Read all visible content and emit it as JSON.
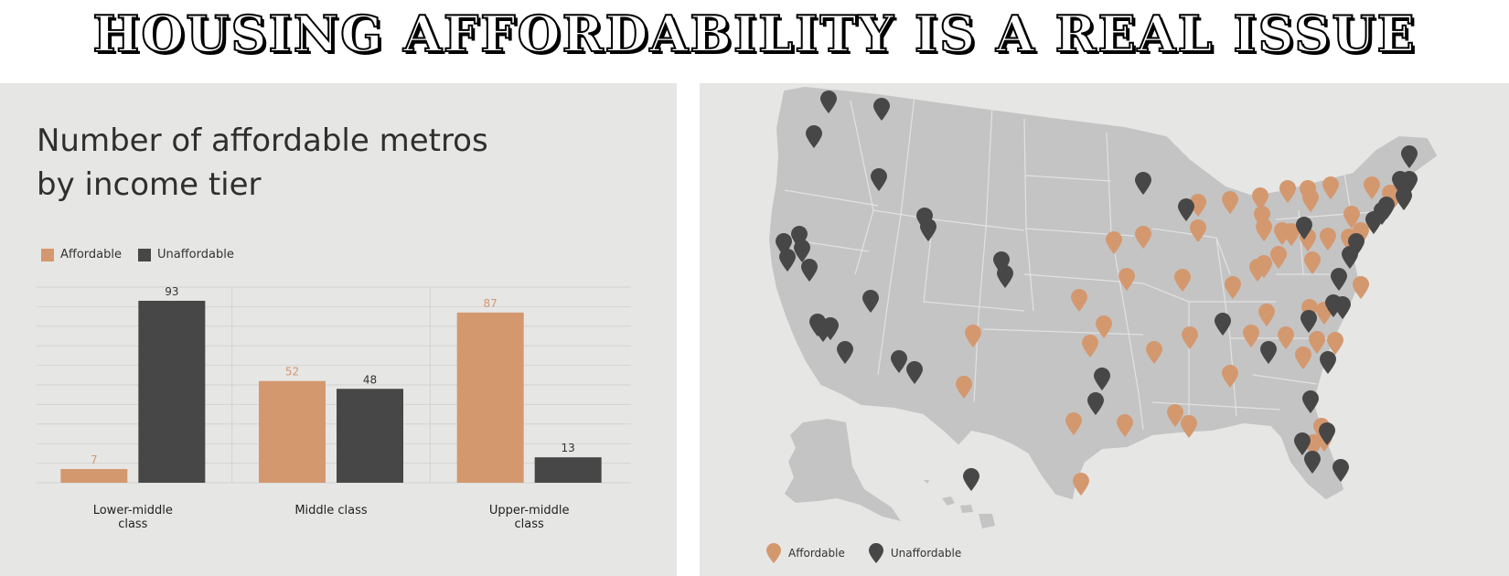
{
  "page": {
    "title": "HOUSING AFFORDABILITY IS A REAL ISSUE"
  },
  "colors": {
    "affordable": "#d4986f",
    "unaffordable": "#474747",
    "land": "#c4c4c4",
    "panel": "#e6e6e5"
  },
  "chart_data": [
    {
      "type": "bar",
      "title_lines": [
        "Number of affordable metros",
        "by income tier"
      ],
      "categories": [
        "Lower-middle class",
        "Middle class",
        "Upper-middle class"
      ],
      "category_label_lines": [
        [
          "Lower-middle",
          "class"
        ],
        [
          "Middle class"
        ],
        [
          "Upper-middle",
          "class"
        ]
      ],
      "series": [
        {
          "name": "Affordable",
          "values": [
            7,
            52,
            87
          ]
        },
        {
          "name": "Unaffordable",
          "values": [
            93,
            48,
            13
          ]
        }
      ],
      "ylim": [
        0,
        100
      ],
      "grid": true,
      "legend": "top-left"
    }
  ],
  "map": {
    "legend": {
      "affordable": "Affordable",
      "unaffordable": "Unaffordable"
    },
    "pin_icon": "map-pin-icon"
  }
}
